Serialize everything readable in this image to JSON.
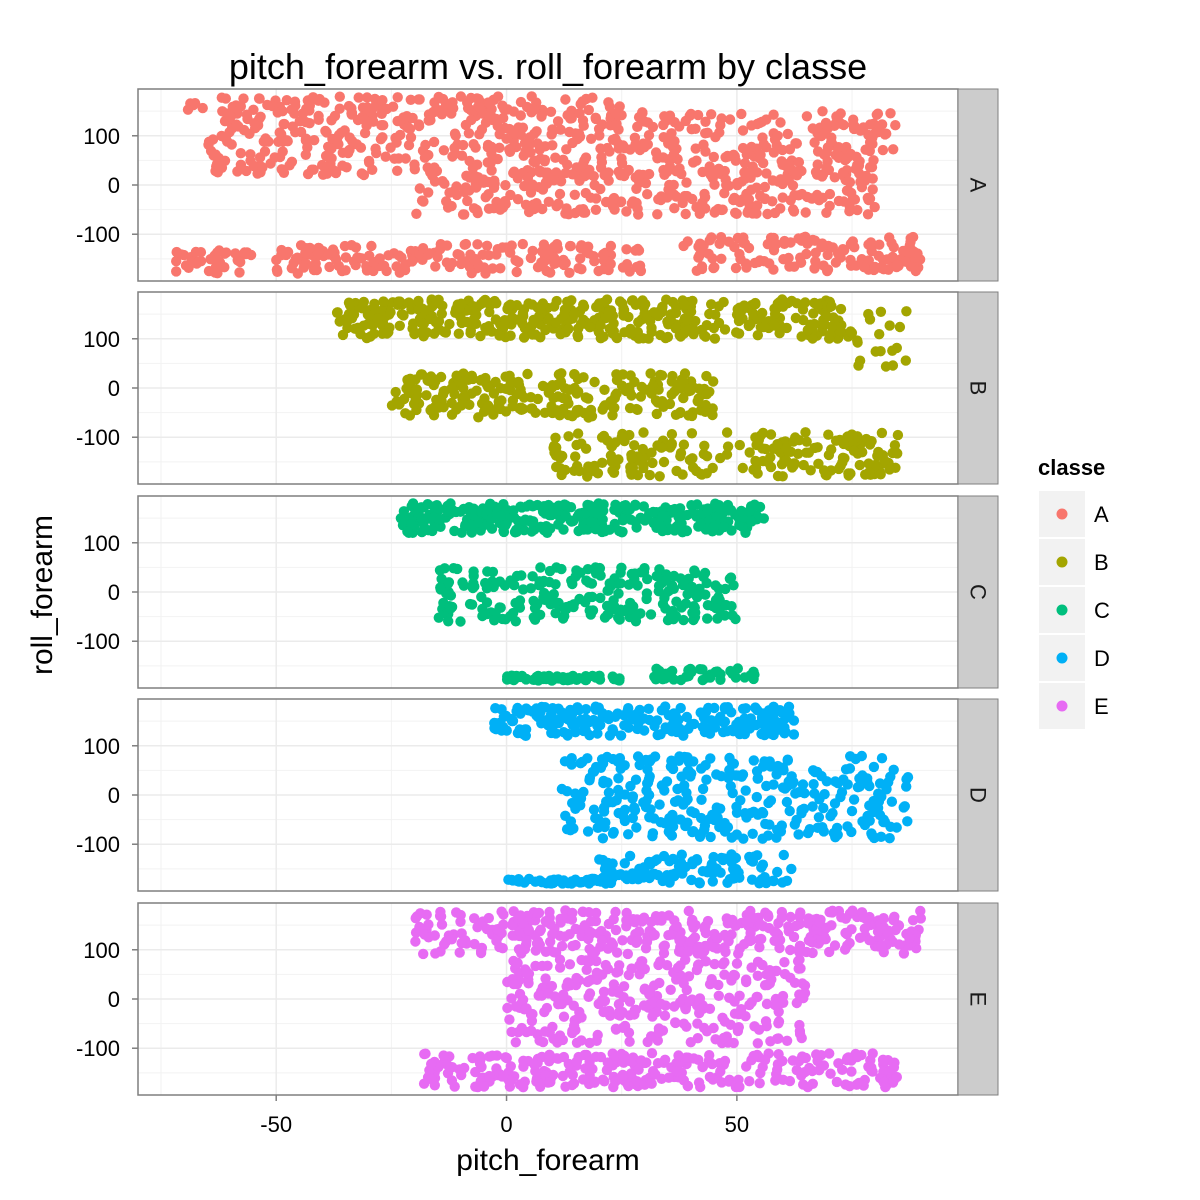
{
  "chart_data": {
    "type": "scatter",
    "title": "pitch_forearm vs. roll_forearm by classe",
    "xlabel": "pitch_forearm",
    "ylabel": "roll_forearm",
    "xlim": [
      -80,
      98
    ],
    "ylim": [
      -195,
      195
    ],
    "x_ticks": [
      -50,
      0,
      50
    ],
    "x_tick_labels": [
      "-50",
      "0",
      "50"
    ],
    "y_ticks": [
      100,
      0,
      -100
    ],
    "y_tick_labels": [
      "100",
      "0",
      "-100"
    ],
    "grid": true,
    "facet_by": "classe",
    "legend": {
      "title": "classe",
      "position": "right",
      "entries": [
        {
          "label": "A",
          "color": "#F8766D"
        },
        {
          "label": "B",
          "color": "#A3A500"
        },
        {
          "label": "C",
          "color": "#00BF7D"
        },
        {
          "label": "D",
          "color": "#00B0F6"
        },
        {
          "label": "E",
          "color": "#E76BF3"
        }
      ]
    },
    "series": [
      {
        "name": "A",
        "color": "#F8766D",
        "clusters": [
          {
            "x": [
              -70,
              25
            ],
            "y": [
              140,
              180
            ],
            "n": 120
          },
          {
            "x": [
              -65,
              85
            ],
            "y": [
              20,
              150
            ],
            "n": 520
          },
          {
            "x": [
              -20,
              80
            ],
            "y": [
              -60,
              30
            ],
            "n": 260
          },
          {
            "x": [
              -72,
              -55
            ],
            "y": [
              -180,
              -130
            ],
            "n": 40
          },
          {
            "x": [
              -50,
              30
            ],
            "y": [
              -180,
              -120
            ],
            "n": 180
          },
          {
            "x": [
              38,
              90
            ],
            "y": [
              -175,
              -105
            ],
            "n": 130
          }
        ]
      },
      {
        "name": "B",
        "color": "#A3A500",
        "clusters": [
          {
            "x": [
              -37,
              75
            ],
            "y": [
              100,
              180
            ],
            "n": 420
          },
          {
            "x": [
              75,
              88
            ],
            "y": [
              40,
              160
            ],
            "n": 18
          },
          {
            "x": [
              -25,
              45
            ],
            "y": [
              -60,
              30
            ],
            "n": 240
          },
          {
            "x": [
              10,
              85
            ],
            "y": [
              -180,
              -90
            ],
            "n": 210
          }
        ]
      },
      {
        "name": "C",
        "color": "#00BF7D",
        "clusters": [
          {
            "x": [
              -23,
              56
            ],
            "y": [
              120,
              180
            ],
            "n": 330
          },
          {
            "x": [
              -15,
              50
            ],
            "y": [
              -60,
              50
            ],
            "n": 240
          },
          {
            "x": [
              0,
              25
            ],
            "y": [
              -180,
              -170
            ],
            "n": 60
          },
          {
            "x": [
              32,
              54
            ],
            "y": [
              -180,
              -155
            ],
            "n": 40
          }
        ]
      },
      {
        "name": "D",
        "color": "#00B0F6",
        "clusters": [
          {
            "x": [
              -3,
              63
            ],
            "y": [
              120,
              180
            ],
            "n": 220
          },
          {
            "x": [
              12,
              88
            ],
            "y": [
              -90,
              80
            ],
            "n": 320
          },
          {
            "x": [
              20,
              62
            ],
            "y": [
              -180,
              -120
            ],
            "n": 110
          },
          {
            "x": [
              0,
              23
            ],
            "y": [
              -180,
              -170
            ],
            "n": 50
          }
        ]
      },
      {
        "name": "E",
        "color": "#E76BF3",
        "clusters": [
          {
            "x": [
              -20,
              90
            ],
            "y": [
              90,
              180
            ],
            "n": 380
          },
          {
            "x": [
              0,
              65
            ],
            "y": [
              -90,
              80
            ],
            "n": 300
          },
          {
            "x": [
              -18,
              85
            ],
            "y": [
              -180,
              -110
            ],
            "n": 280
          }
        ]
      }
    ]
  }
}
